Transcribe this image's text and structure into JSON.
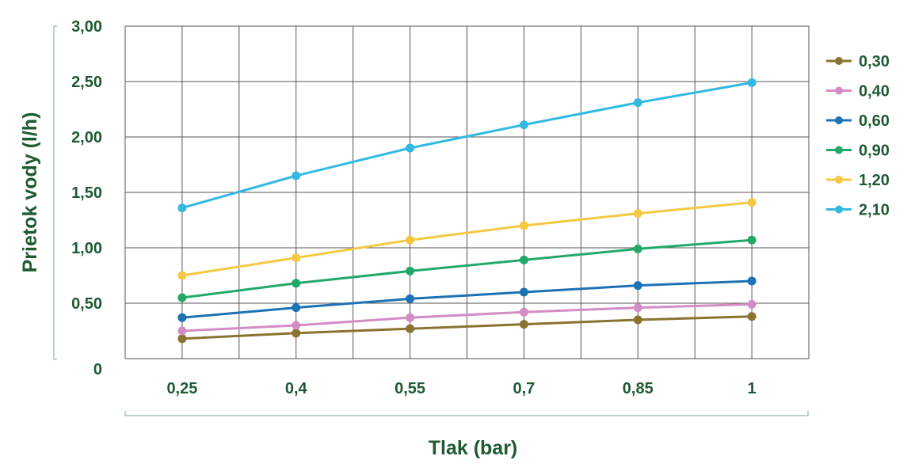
{
  "chart_data": {
    "type": "line",
    "xlabel": "Tlak (bar)",
    "ylabel": "Prietok vody (l/h)",
    "categories": [
      "0,25",
      "0,4",
      "0,55",
      "0,7",
      "0,85",
      "1"
    ],
    "ylim": [
      0,
      3
    ],
    "yticks": [
      {
        "value": 0,
        "label": "0"
      },
      {
        "value": 0.5,
        "label": "0,50"
      },
      {
        "value": 1.0,
        "label": "1,00"
      },
      {
        "value": 1.5,
        "label": "1,50"
      },
      {
        "value": 2.0,
        "label": "2,00"
      },
      {
        "value": 2.5,
        "label": "2,50"
      },
      {
        "value": 3.0,
        "label": "3,00"
      }
    ],
    "grid": true,
    "legend_position": "right",
    "series": [
      {
        "name": "0,30",
        "color": "#8a7330",
        "values": [
          0.18,
          0.23,
          0.27,
          0.31,
          0.35,
          0.38
        ]
      },
      {
        "name": "0,40",
        "color": "#d48cc6",
        "values": [
          0.25,
          0.3,
          0.37,
          0.42,
          0.46,
          0.49
        ]
      },
      {
        "name": "0,60",
        "color": "#1d72b4",
        "values": [
          0.37,
          0.46,
          0.54,
          0.6,
          0.66,
          0.7
        ]
      },
      {
        "name": "0,90",
        "color": "#22a96a",
        "values": [
          0.55,
          0.68,
          0.79,
          0.89,
          0.99,
          1.07
        ]
      },
      {
        "name": "1,20",
        "color": "#f5c842",
        "values": [
          0.75,
          0.91,
          1.07,
          1.2,
          1.31,
          1.41
        ]
      },
      {
        "name": "2,10",
        "color": "#32b9e2",
        "values": [
          1.36,
          1.65,
          1.9,
          2.11,
          2.31,
          2.49
        ]
      }
    ]
  }
}
